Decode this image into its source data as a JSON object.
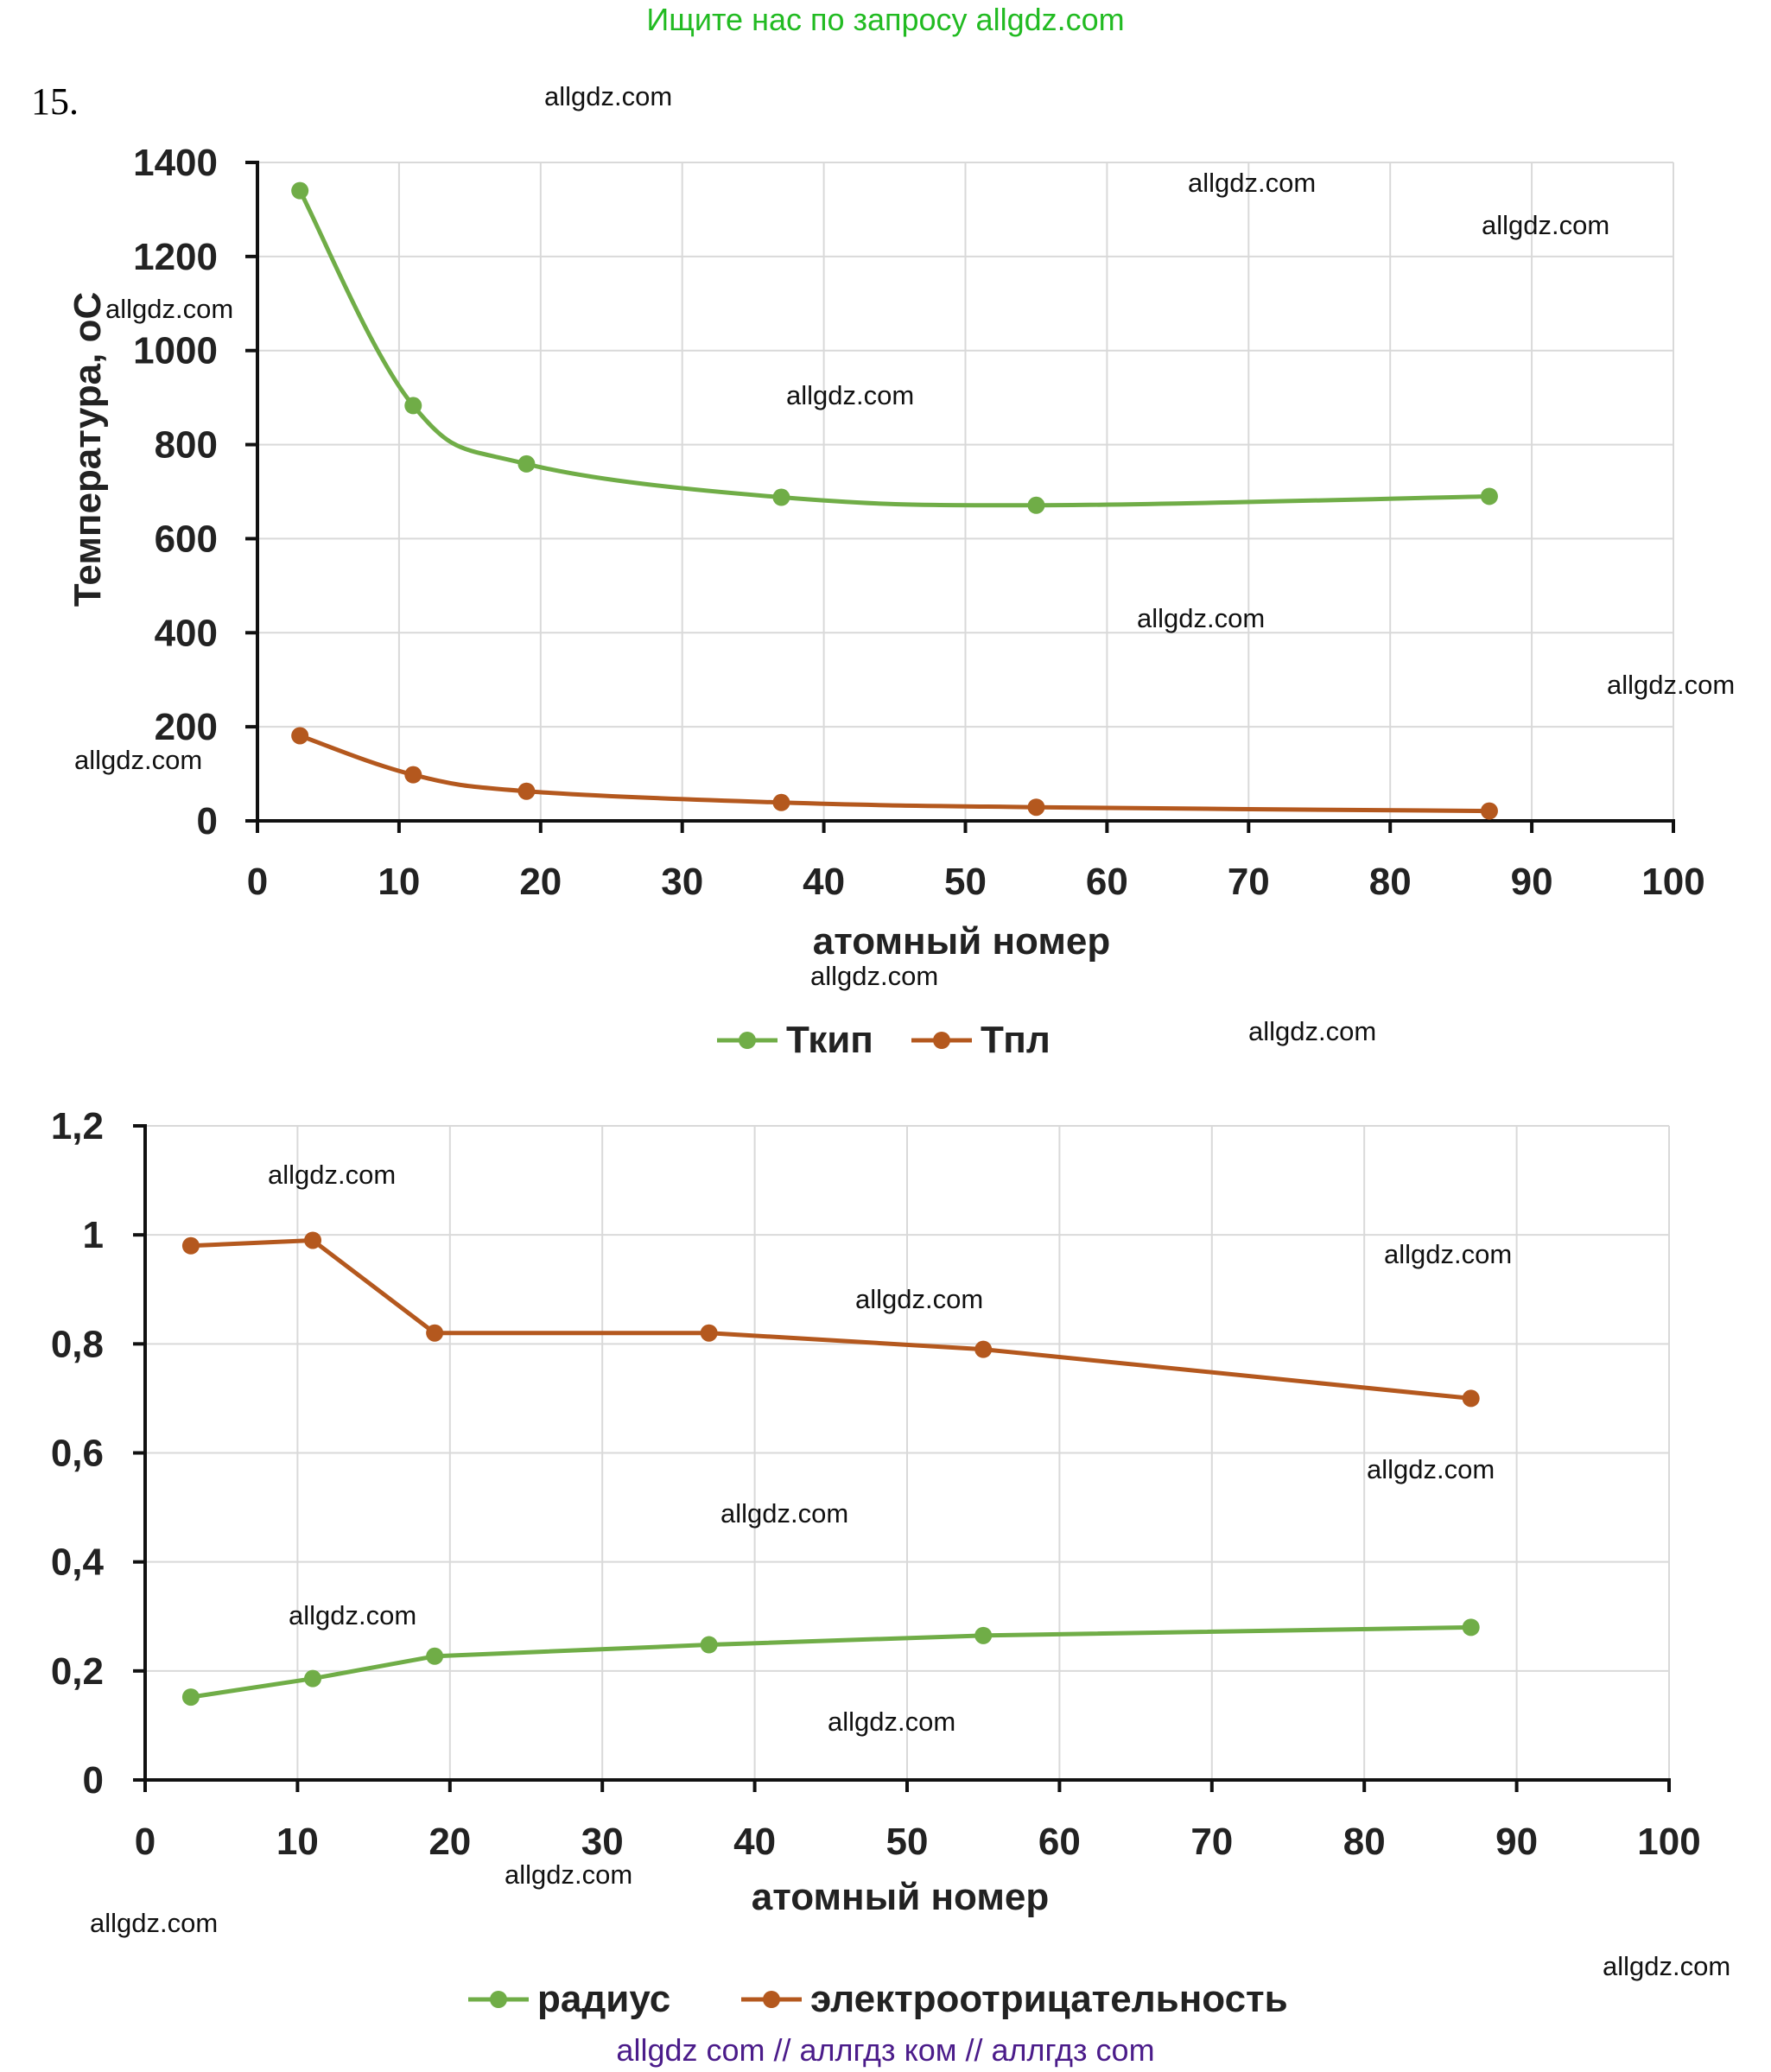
{
  "banner": "Ищите нас по запросу allgdz.com",
  "task_number": "15.",
  "footer": "allgdz com  //  аллгдз ком  //  аллгдз com",
  "watermarks": [
    "allgdz.com",
    "allgdz.com",
    "allgdz.com",
    "allgdz.com",
    "allgdz.com",
    "allgdz.com",
    "allgdz.com",
    "allgdz.com",
    "allgdz.com",
    "allgdz.com",
    "allgdz.com",
    "allgdz.com",
    "allgdz.com",
    "allgdz.com",
    "allgdz.com",
    "allgdz.com",
    "allgdz.com",
    "allgdz.com",
    "allgdz.com",
    "allgdz.com"
  ],
  "colors": {
    "green": "#70ad47",
    "brown": "#b4581e",
    "grid": "#d9d9d9",
    "axis": "#111111"
  },
  "chart_data": [
    {
      "type": "line",
      "title": "",
      "xlabel": "атомный номер",
      "ylabel": "Температура, оС",
      "xlim": [
        0,
        100
      ],
      "ylim": [
        0,
        1400
      ],
      "x_ticks": [
        "0",
        "10",
        "20",
        "30",
        "40",
        "50",
        "60",
        "70",
        "80",
        "90",
        "100"
      ],
      "y_ticks": [
        "0",
        "200",
        "400",
        "600",
        "800",
        "1000",
        "1200",
        "1400"
      ],
      "grid": true,
      "smooth": true,
      "legend_position": "bottom",
      "x": [
        3,
        11,
        19,
        37,
        55,
        87
      ],
      "series": [
        {
          "name": "Ткип",
          "color": "#70ad47",
          "values": [
            1340,
            883,
            759,
            688,
            671,
            690
          ]
        },
        {
          "name": "Тпл",
          "color": "#b4581e",
          "values": [
            181,
            98,
            63,
            39,
            29,
            21
          ]
        }
      ]
    },
    {
      "type": "line",
      "title": "",
      "xlabel": "атомный номер",
      "ylabel": "",
      "xlim": [
        0,
        100
      ],
      "ylim": [
        0,
        1.2
      ],
      "x_ticks": [
        "0",
        "10",
        "20",
        "30",
        "40",
        "50",
        "60",
        "70",
        "80",
        "90",
        "100"
      ],
      "y_ticks": [
        "0",
        "0,2",
        "0,4",
        "0,6",
        "0,8",
        "1",
        "1,2"
      ],
      "grid": true,
      "smooth": false,
      "legend_position": "bottom",
      "x": [
        3,
        11,
        19,
        37,
        55,
        87
      ],
      "series": [
        {
          "name": "радиус",
          "color": "#70ad47",
          "values": [
            0.152,
            0.186,
            0.227,
            0.248,
            0.265,
            0.28
          ]
        },
        {
          "name": "электроотрицательность",
          "color": "#b4581e",
          "values": [
            0.98,
            0.99,
            0.82,
            0.82,
            0.79,
            0.7
          ]
        }
      ]
    }
  ]
}
